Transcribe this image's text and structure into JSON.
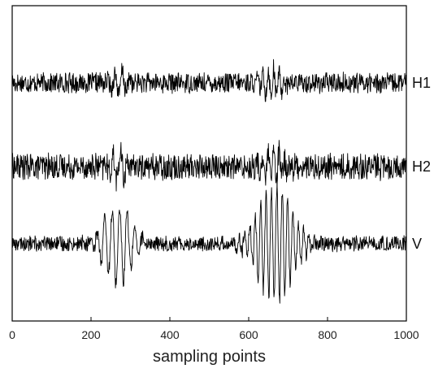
{
  "chart_data": {
    "type": "line",
    "title": "",
    "xlabel": "sampling points",
    "ylabel": "",
    "xlim": [
      0,
      1000
    ],
    "x_ticks": [
      "0",
      "200",
      "400",
      "600",
      "800",
      "1000"
    ],
    "grid": false,
    "legend": "none",
    "line_color": "#000000",
    "series": [
      {
        "name": "H1",
        "sample_count": 1000,
        "baseline_noise_amplitude": 0.42,
        "events": [
          {
            "center": 275,
            "amplitude": 0.55,
            "width": 20
          },
          {
            "center": 660,
            "amplitude": 0.62,
            "width": 24
          }
        ]
      },
      {
        "name": "H2",
        "sample_count": 1000,
        "baseline_noise_amplitude": 0.48,
        "events": [
          {
            "center": 270,
            "amplitude": 0.52,
            "width": 22
          },
          {
            "center": 660,
            "amplitude": 0.68,
            "width": 24
          }
        ]
      },
      {
        "name": "V",
        "sample_count": 1000,
        "baseline_noise_amplitude": 0.24,
        "events": [
          {
            "center": 268,
            "amplitude": 1.35,
            "width": 34
          },
          {
            "center": 668,
            "amplitude": 1.95,
            "width": 42
          }
        ]
      }
    ]
  }
}
